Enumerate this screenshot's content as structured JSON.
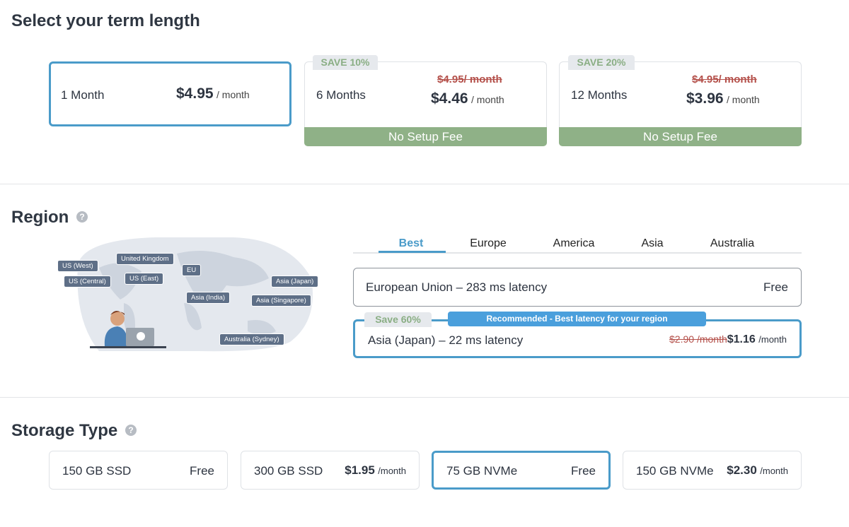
{
  "term": {
    "title": "Select your term length",
    "options": [
      {
        "name": "1 Month",
        "price": "$4.95",
        "unit": "/ month"
      },
      {
        "badge": "SAVE 10%",
        "name": "6 Months",
        "old_price": "$4.95/ month",
        "price": "$4.46",
        "unit": "/ month",
        "footer": "No Setup Fee"
      },
      {
        "badge": "SAVE 20%",
        "name": "12 Months",
        "old_price": "$4.95/ month",
        "price": "$3.96",
        "unit": "/ month",
        "footer": "No Setup Fee"
      }
    ]
  },
  "region": {
    "title": "Region",
    "help": "?",
    "map_labels": [
      "US (West)",
      "US (Central)",
      "United Kingdom",
      "US (East)",
      "EU",
      "Asia (India)",
      "Asia (Japan)",
      "Asia (Singapore)",
      "Australia (Sydney)"
    ],
    "tabs": [
      "Best",
      "Europe",
      "America",
      "Asia",
      "Australia"
    ],
    "options": [
      {
        "name": "European Union – 283 ms latency",
        "price": "Free"
      },
      {
        "badge": "Save 60%",
        "recommended": "Recommended - Best latency for your region",
        "name": "Asia (Japan) – 22 ms latency",
        "old_price": "$2.90 /month",
        "price": "$1.16",
        "unit": "/month"
      }
    ]
  },
  "storage": {
    "title": "Storage Type",
    "help": "?",
    "options": [
      {
        "name": "150 GB SSD",
        "price": "Free"
      },
      {
        "name": "300 GB SSD",
        "price": "$1.95",
        "unit": "/month"
      },
      {
        "name": "75 GB NVMe",
        "price": "Free"
      },
      {
        "name": "150 GB NVMe",
        "price": "$2.30",
        "unit": "/month"
      }
    ]
  }
}
